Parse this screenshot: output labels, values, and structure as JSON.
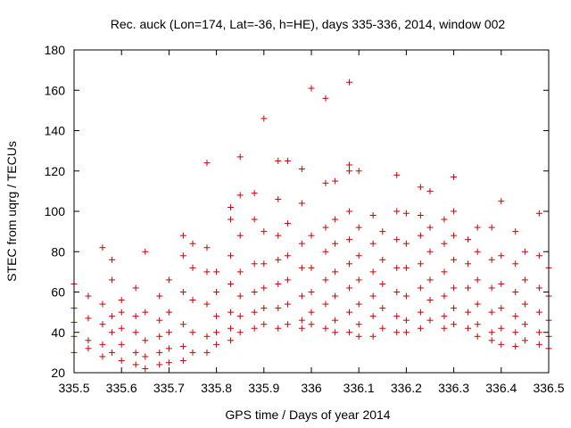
{
  "chart_data": {
    "type": "scatter",
    "title": "Rec. auck (Lon=174, Lat=-36, h=HE), days 335-336, 2014, window 002",
    "xlabel": "GPS time / Days of year 2014",
    "ylabel": "STEC from uqrg / TECUs",
    "xlim": [
      335.5,
      336.5
    ],
    "ylim": [
      20,
      180
    ],
    "xticks": [
      "335.5",
      "335.6",
      "335.7",
      "335.8",
      "335.9",
      "336",
      "336.1",
      "336.2",
      "336.3",
      "336.4",
      "336.5"
    ],
    "yticks": [
      "20",
      "40",
      "60",
      "80",
      "100",
      "120",
      "140",
      "160",
      "180"
    ],
    "marker": "+",
    "color": "#cc0000",
    "grid": false,
    "legend": "none",
    "series": [
      {
        "name": "STEC",
        "points": [
          [
            335.5,
            64
          ],
          [
            335.5,
            52
          ],
          [
            335.5,
            45
          ],
          [
            335.5,
            38
          ],
          [
            335.5,
            30
          ],
          [
            335.53,
            58
          ],
          [
            335.53,
            47
          ],
          [
            335.53,
            36
          ],
          [
            335.53,
            32
          ],
          [
            335.56,
            82
          ],
          [
            335.56,
            54
          ],
          [
            335.56,
            44
          ],
          [
            335.56,
            34
          ],
          [
            335.56,
            28
          ],
          [
            335.58,
            76
          ],
          [
            335.58,
            66
          ],
          [
            335.58,
            48
          ],
          [
            335.58,
            40
          ],
          [
            335.58,
            30
          ],
          [
            335.6,
            56
          ],
          [
            335.6,
            50
          ],
          [
            335.6,
            42
          ],
          [
            335.6,
            34
          ],
          [
            335.6,
            26
          ],
          [
            335.63,
            62
          ],
          [
            335.63,
            48
          ],
          [
            335.63,
            40
          ],
          [
            335.63,
            30
          ],
          [
            335.63,
            24
          ],
          [
            335.65,
            80
          ],
          [
            335.65,
            50
          ],
          [
            335.65,
            36
          ],
          [
            335.65,
            28
          ],
          [
            335.65,
            22
          ],
          [
            335.68,
            58
          ],
          [
            335.68,
            46
          ],
          [
            335.68,
            38
          ],
          [
            335.68,
            30
          ],
          [
            335.68,
            24
          ],
          [
            335.7,
            66
          ],
          [
            335.7,
            50
          ],
          [
            335.7,
            40
          ],
          [
            335.7,
            32
          ],
          [
            335.7,
            25
          ],
          [
            335.73,
            88
          ],
          [
            335.73,
            78
          ],
          [
            335.73,
            60
          ],
          [
            335.73,
            44
          ],
          [
            335.73,
            33
          ],
          [
            335.73,
            26
          ],
          [
            335.75,
            84
          ],
          [
            335.75,
            72
          ],
          [
            335.75,
            56
          ],
          [
            335.75,
            40
          ],
          [
            335.75,
            30
          ],
          [
            335.78,
            124
          ],
          [
            335.78,
            82
          ],
          [
            335.78,
            70
          ],
          [
            335.78,
            54
          ],
          [
            335.78,
            38
          ],
          [
            335.78,
            30
          ],
          [
            335.8,
            70
          ],
          [
            335.8,
            60
          ],
          [
            335.8,
            48
          ],
          [
            335.8,
            40
          ],
          [
            335.8,
            34
          ],
          [
            335.83,
            102
          ],
          [
            335.83,
            96
          ],
          [
            335.83,
            78
          ],
          [
            335.83,
            64
          ],
          [
            335.83,
            50
          ],
          [
            335.83,
            42
          ],
          [
            335.83,
            36
          ],
          [
            335.85,
            127
          ],
          [
            335.85,
            108
          ],
          [
            335.85,
            88
          ],
          [
            335.85,
            70
          ],
          [
            335.85,
            58
          ],
          [
            335.85,
            48
          ],
          [
            335.85,
            40
          ],
          [
            335.88,
            109
          ],
          [
            335.88,
            96
          ],
          [
            335.88,
            74
          ],
          [
            335.88,
            60
          ],
          [
            335.88,
            50
          ],
          [
            335.88,
            42
          ],
          [
            335.9,
            146
          ],
          [
            335.9,
            90
          ],
          [
            335.9,
            74
          ],
          [
            335.9,
            62
          ],
          [
            335.9,
            52
          ],
          [
            335.9,
            44
          ],
          [
            335.93,
            125
          ],
          [
            335.93,
            106
          ],
          [
            335.93,
            88
          ],
          [
            335.93,
            76
          ],
          [
            335.93,
            64
          ],
          [
            335.93,
            52
          ],
          [
            335.93,
            42
          ],
          [
            335.95,
            125
          ],
          [
            335.95,
            94
          ],
          [
            335.95,
            78
          ],
          [
            335.95,
            66
          ],
          [
            335.95,
            54
          ],
          [
            335.95,
            44
          ],
          [
            335.98,
            121
          ],
          [
            335.98,
            104
          ],
          [
            335.98,
            84
          ],
          [
            335.98,
            72
          ],
          [
            335.98,
            58
          ],
          [
            335.98,
            46
          ],
          [
            335.98,
            42
          ],
          [
            336,
            161
          ],
          [
            336,
            88
          ],
          [
            336,
            72
          ],
          [
            336,
            60
          ],
          [
            336,
            50
          ],
          [
            336,
            44
          ],
          [
            336.03,
            156
          ],
          [
            336.03,
            114
          ],
          [
            336.03,
            92
          ],
          [
            336.03,
            80
          ],
          [
            336.03,
            66
          ],
          [
            336.03,
            54
          ],
          [
            336.03,
            42
          ],
          [
            336.05,
            115
          ],
          [
            336.05,
            96
          ],
          [
            336.05,
            84
          ],
          [
            336.05,
            70
          ],
          [
            336.05,
            58
          ],
          [
            336.05,
            46
          ],
          [
            336.05,
            40
          ],
          [
            336.08,
            164
          ],
          [
            336.08,
            123
          ],
          [
            336.08,
            120
          ],
          [
            336.08,
            100
          ],
          [
            336.08,
            86
          ],
          [
            336.08,
            74
          ],
          [
            336.08,
            62
          ],
          [
            336.08,
            50
          ],
          [
            336.08,
            40
          ],
          [
            336.1,
            120
          ],
          [
            336.1,
            92
          ],
          [
            336.1,
            78
          ],
          [
            336.1,
            66
          ],
          [
            336.1,
            54
          ],
          [
            336.1,
            44
          ],
          [
            336.1,
            38
          ],
          [
            336.13,
            98
          ],
          [
            336.13,
            84
          ],
          [
            336.13,
            70
          ],
          [
            336.13,
            58
          ],
          [
            336.13,
            48
          ],
          [
            336.13,
            38
          ],
          [
            336.15,
            90
          ],
          [
            336.15,
            76
          ],
          [
            336.15,
            64
          ],
          [
            336.15,
            52
          ],
          [
            336.15,
            42
          ],
          [
            336.18,
            118
          ],
          [
            336.18,
            100
          ],
          [
            336.18,
            86
          ],
          [
            336.18,
            72
          ],
          [
            336.18,
            60
          ],
          [
            336.18,
            48
          ],
          [
            336.18,
            40
          ],
          [
            336.2,
            99
          ],
          [
            336.2,
            84
          ],
          [
            336.2,
            72
          ],
          [
            336.2,
            58
          ],
          [
            336.2,
            46
          ],
          [
            336.2,
            40
          ],
          [
            336.23,
            112
          ],
          [
            336.23,
            98
          ],
          [
            336.23,
            88
          ],
          [
            336.23,
            74
          ],
          [
            336.23,
            62
          ],
          [
            336.23,
            50
          ],
          [
            336.23,
            42
          ],
          [
            336.25,
            110
          ],
          [
            336.25,
            92
          ],
          [
            336.25,
            80
          ],
          [
            336.25,
            66
          ],
          [
            336.25,
            56
          ],
          [
            336.25,
            46
          ],
          [
            336.28,
            96
          ],
          [
            336.28,
            84
          ],
          [
            336.28,
            70
          ],
          [
            336.28,
            58
          ],
          [
            336.28,
            48
          ],
          [
            336.28,
            42
          ],
          [
            336.3,
            117
          ],
          [
            336.3,
            100
          ],
          [
            336.3,
            88
          ],
          [
            336.3,
            76
          ],
          [
            336.3,
            62
          ],
          [
            336.3,
            52
          ],
          [
            336.3,
            44
          ],
          [
            336.33,
            86
          ],
          [
            336.33,
            74
          ],
          [
            336.33,
            62
          ],
          [
            336.33,
            50
          ],
          [
            336.33,
            42
          ],
          [
            336.35,
            92
          ],
          [
            336.35,
            80
          ],
          [
            336.35,
            66
          ],
          [
            336.35,
            54
          ],
          [
            336.35,
            44
          ],
          [
            336.35,
            38
          ],
          [
            336.38,
            92
          ],
          [
            336.38,
            76
          ],
          [
            336.38,
            62
          ],
          [
            336.38,
            50
          ],
          [
            336.38,
            40
          ],
          [
            336.38,
            36
          ],
          [
            336.4,
            105
          ],
          [
            336.4,
            78
          ],
          [
            336.4,
            64
          ],
          [
            336.4,
            52
          ],
          [
            336.4,
            42
          ],
          [
            336.4,
            34
          ],
          [
            336.43,
            90
          ],
          [
            336.43,
            74
          ],
          [
            336.43,
            60
          ],
          [
            336.43,
            48
          ],
          [
            336.43,
            40
          ],
          [
            336.43,
            33
          ],
          [
            336.45,
            80
          ],
          [
            336.45,
            66
          ],
          [
            336.45,
            54
          ],
          [
            336.45,
            44
          ],
          [
            336.45,
            36
          ],
          [
            336.48,
            99
          ],
          [
            336.48,
            78
          ],
          [
            336.48,
            62
          ],
          [
            336.48,
            50
          ],
          [
            336.48,
            40
          ],
          [
            336.48,
            34
          ],
          [
            336.5,
            72
          ],
          [
            336.5,
            58
          ],
          [
            336.5,
            46
          ],
          [
            336.5,
            38
          ],
          [
            336.5,
            32
          ]
        ]
      }
    ]
  }
}
